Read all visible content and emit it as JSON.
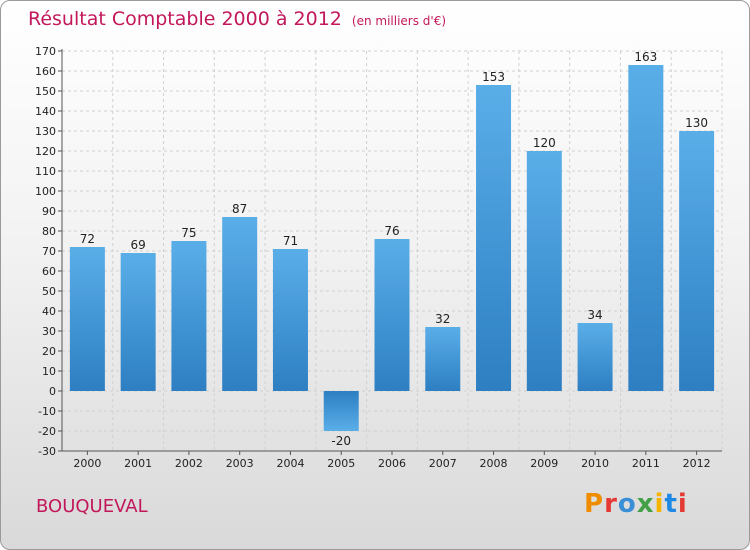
{
  "header": {
    "title": "Résultat Comptable 2000 à 2012",
    "subtitle": "(en milliers d'€)"
  },
  "footer": {
    "commune": "BOUQUEVAL",
    "logo": "Proxiti",
    "logo_colors": [
      "#f08c00",
      "#e53935",
      "#3a8fd6",
      "#43a047",
      "#f5b400",
      "#1e88e5",
      "#e53935"
    ]
  },
  "colors": {
    "bar_top": "#5aaee8",
    "bar_bottom": "#2d7fc2",
    "title": "#c2185b",
    "grid": "#d0d0d0",
    "axis": "#555555"
  },
  "chart_data": {
    "type": "bar",
    "title": "Résultat Comptable 2000 à 2012",
    "ylabel": "(en milliers d'€)",
    "xlabel": "",
    "categories": [
      "2000",
      "2001",
      "2002",
      "2003",
      "2004",
      "2005",
      "2006",
      "2007",
      "2008",
      "2009",
      "2010",
      "2011",
      "2012"
    ],
    "values": [
      72,
      69,
      75,
      87,
      71,
      -20,
      76,
      32,
      153,
      120,
      34,
      163,
      130
    ],
    "ylim": [
      -30,
      170
    ],
    "ytick_step": 10,
    "grid": true
  }
}
